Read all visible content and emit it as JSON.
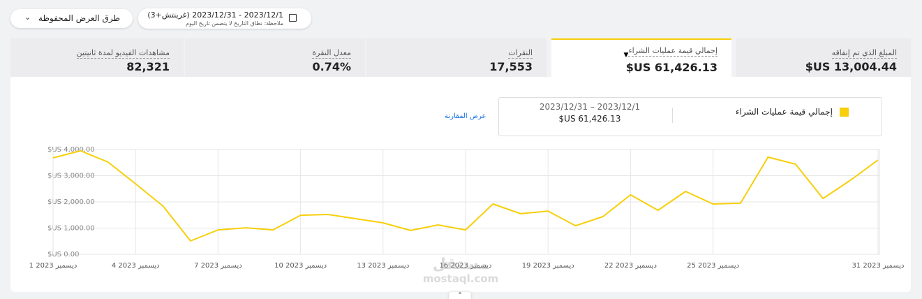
{
  "toolbar": {
    "saved_views": "طرق العرض المحفوظة",
    "date_range": "2023/12/1 - 2023/12/31 (غرينتش+3)",
    "date_note": "ملاحظة: نطاق التاريخ لا يتضمن تاريخ اليوم"
  },
  "metrics": [
    {
      "label": "المبلغ الذي تم إنفاقه",
      "value": "$US 13,004.44"
    },
    {
      "label": "إجمالي قيمة عمليات الشراء",
      "value": "$US 61,426.13"
    },
    {
      "label": "النقرات",
      "value": "17,553"
    },
    {
      "label": "معدل النقرة",
      "value": "0.74%"
    },
    {
      "label": "مشاهدات الفيديو لمدة ثانيتين",
      "value": "82,321"
    }
  ],
  "compare_link": "عرض المقارنة",
  "legend": {
    "range": "2023/12/1 – 2023/12/31",
    "total": "$US 61,426.13"
  },
  "watermark": {
    "arabic": "مستقل",
    "latin": "mostaql.com"
  },
  "chart_data": {
    "type": "line",
    "categories": [
      "1 ديسمبر 2023",
      null,
      null,
      "4 ديسمبر 2023",
      null,
      null,
      "7 ديسمبر 2023",
      null,
      null,
      "10 ديسمبر 2023",
      null,
      null,
      "13 ديسمبر 2023",
      null,
      null,
      "16 ديسمبر 2023",
      null,
      null,
      "19 ديسمبر 2023",
      null,
      null,
      "22 ديسمبر 2023",
      null,
      null,
      "25 ديسمبر 2023",
      null,
      null,
      null,
      null,
      null,
      "31 ديسمبر 2023"
    ],
    "series": [
      {
        "name": "إجمالي قيمة عمليات الشراء",
        "color": "#f7cf0c",
        "values": [
          3680,
          3950,
          3520,
          2690,
          1840,
          510,
          930,
          1010,
          930,
          1490,
          1520,
          1360,
          1200,
          910,
          1120,
          930,
          1920,
          1550,
          1650,
          1090,
          1440,
          2270,
          1680,
          2400,
          1920,
          1950,
          3710,
          3440,
          2130,
          2830,
          3600
        ]
      }
    ],
    "ylim": [
      0,
      4000
    ],
    "yticks": [
      {
        "value": 0,
        "label": "$US 0.00"
      },
      {
        "value": 1000,
        "label": "$US 1,000.00"
      },
      {
        "value": 2000,
        "label": "$US 2,000.00"
      },
      {
        "value": 3000,
        "label": "$US 3,000.00"
      },
      {
        "value": 4000,
        "label": "$US 4,000.00"
      }
    ],
    "grid": true
  }
}
